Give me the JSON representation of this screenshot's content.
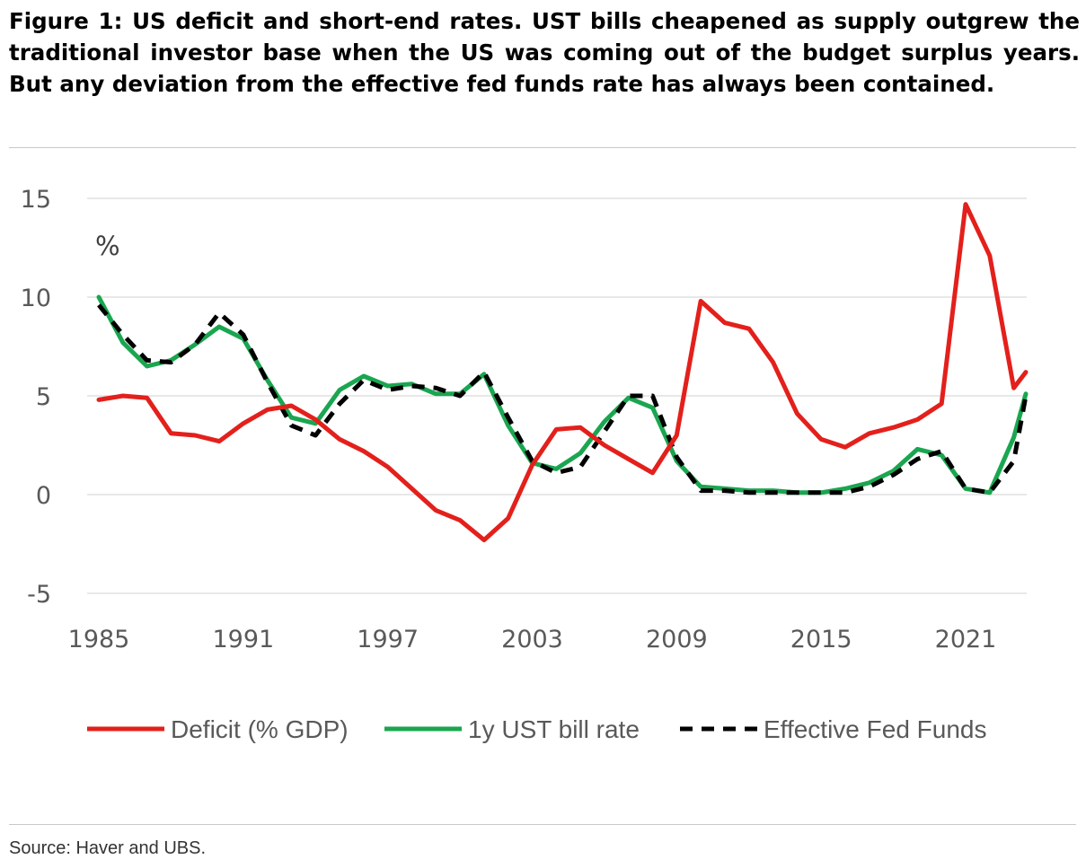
{
  "title": "Figure 1: US deficit and short-end rates. UST bills cheapened as supply outgrew the traditional investor base when the US was coming out of the budget surplus years. But any deviation from the effective fed funds rate has always been contained.",
  "source": "Source: Haver and UBS.",
  "chart_data": {
    "type": "line",
    "unit_label": "%",
    "x_ticks": [
      1985,
      1991,
      1997,
      2003,
      2009,
      2015,
      2021
    ],
    "xlim": [
      1985,
      2023.5
    ],
    "y_ticks": [
      -5,
      0,
      5,
      10,
      15
    ],
    "ylim": [
      -5,
      15
    ],
    "grid": "horizontal",
    "legend_position": "bottom",
    "x": [
      1985,
      1986,
      1987,
      1988,
      1989,
      1990,
      1991,
      1992,
      1993,
      1994,
      1995,
      1996,
      1997,
      1998,
      1999,
      2000,
      2001,
      2002,
      2003,
      2004,
      2005,
      2006,
      2007,
      2008,
      2009,
      2010,
      2011,
      2012,
      2013,
      2014,
      2015,
      2016,
      2017,
      2018,
      2019,
      2020,
      2021,
      2022,
      2023,
      2023.5
    ],
    "series": [
      {
        "name": "Deficit (% GDP)",
        "color": "#e3201b",
        "style": "solid",
        "values": [
          4.8,
          5.0,
          4.9,
          3.1,
          3.0,
          2.7,
          3.6,
          4.3,
          4.5,
          3.8,
          2.8,
          2.2,
          1.4,
          0.3,
          -0.8,
          -1.3,
          -2.3,
          -1.2,
          1.5,
          3.3,
          3.4,
          2.5,
          1.8,
          1.1,
          3.0,
          9.8,
          8.7,
          8.4,
          6.7,
          4.1,
          2.8,
          2.4,
          3.1,
          3.4,
          3.8,
          4.6,
          14.7,
          12.1,
          5.4,
          6.2
        ]
      },
      {
        "name": "1y UST bill rate",
        "color": "#1aa650",
        "style": "solid",
        "values": [
          10.0,
          7.7,
          6.5,
          6.8,
          7.6,
          8.5,
          7.9,
          5.8,
          3.9,
          3.6,
          5.3,
          6.0,
          5.5,
          5.6,
          5.1,
          5.1,
          6.1,
          3.5,
          1.6,
          1.3,
          2.1,
          3.7,
          4.9,
          4.4,
          1.7,
          0.4,
          0.3,
          0.2,
          0.2,
          0.1,
          0.1,
          0.3,
          0.6,
          1.2,
          2.3,
          2.0,
          0.3,
          0.1,
          2.9,
          5.1
        ]
      },
      {
        "name": "Effective Fed Funds",
        "color": "#000000",
        "style": "dashed",
        "values": [
          9.6,
          8.1,
          6.8,
          6.7,
          7.6,
          9.2,
          8.1,
          5.7,
          3.5,
          3.0,
          4.6,
          5.8,
          5.3,
          5.5,
          5.4,
          5.0,
          6.2,
          3.9,
          1.7,
          1.1,
          1.4,
          3.2,
          5.0,
          5.0,
          1.9,
          0.2,
          0.2,
          0.1,
          0.1,
          0.1,
          0.1,
          0.1,
          0.4,
          1.0,
          1.8,
          2.2,
          0.3,
          0.1,
          1.7,
          5.0
        ]
      }
    ]
  }
}
